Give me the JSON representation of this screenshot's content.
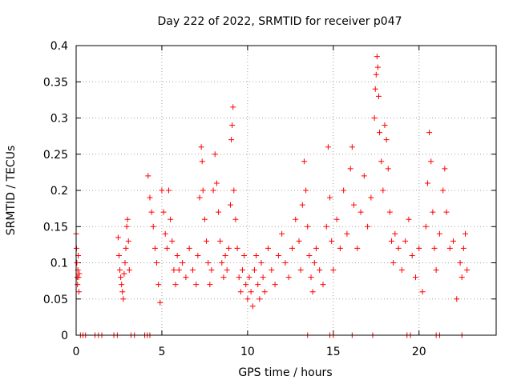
{
  "chart_data": {
    "type": "scatter",
    "title": "Day 222 of 2022, SRMTID for receiver p047",
    "xlabel": "GPS time / hours",
    "ylabel": "SRMTID / TECUs",
    "xlim": [
      0,
      24.5
    ],
    "ylim": [
      0,
      0.4
    ],
    "x_ticks": [
      0,
      5,
      10,
      15,
      20
    ],
    "x_tick_labels": [
      "0",
      "5",
      "10",
      "15",
      "20"
    ],
    "y_ticks": [
      0,
      0.05,
      0.1,
      0.15,
      0.2,
      0.25,
      0.3,
      0.35,
      0.4
    ],
    "y_tick_labels": [
      "0",
      "0.05",
      "0.1",
      "0.15",
      "0.2",
      "0.25",
      "0.3",
      "0.35",
      "0.4"
    ],
    "grid": true,
    "marker": "plus",
    "color": "#ff0000",
    "series": [
      {
        "name": "p047",
        "points": [
          [
            0.0,
            0.14
          ],
          [
            0.02,
            0.12
          ],
          [
            0.04,
            0.1
          ],
          [
            0.06,
            0.08
          ],
          [
            0.08,
            0.07
          ],
          [
            0.1,
            0.09
          ],
          [
            0.12,
            0.11
          ],
          [
            0.14,
            0.08
          ],
          [
            0.16,
            0.06
          ],
          [
            0.18,
            0.085
          ],
          [
            2.45,
            0.135
          ],
          [
            2.5,
            0.11
          ],
          [
            2.55,
            0.09
          ],
          [
            2.6,
            0.08
          ],
          [
            2.65,
            0.07
          ],
          [
            2.7,
            0.06
          ],
          [
            2.75,
            0.05
          ],
          [
            2.8,
            0.085
          ],
          [
            2.85,
            0.1
          ],
          [
            2.9,
            0.12
          ],
          [
            2.95,
            0.15
          ],
          [
            3.0,
            0.16
          ],
          [
            3.05,
            0.13
          ],
          [
            3.1,
            0.09
          ],
          [
            4.2,
            0.22
          ],
          [
            4.3,
            0.19
          ],
          [
            4.4,
            0.17
          ],
          [
            4.5,
            0.15
          ],
          [
            4.6,
            0.12
          ],
          [
            4.7,
            0.1
          ],
          [
            4.8,
            0.07
          ],
          [
            4.9,
            0.045
          ],
          [
            5.0,
            0.2
          ],
          [
            5.1,
            0.17
          ],
          [
            5.2,
            0.14
          ],
          [
            5.3,
            0.12
          ],
          [
            5.4,
            0.2
          ],
          [
            5.5,
            0.16
          ],
          [
            5.6,
            0.13
          ],
          [
            5.7,
            0.09
          ],
          [
            5.8,
            0.07
          ],
          [
            5.9,
            0.11
          ],
          [
            6.0,
            0.09
          ],
          [
            6.2,
            0.1
          ],
          [
            6.4,
            0.08
          ],
          [
            6.6,
            0.12
          ],
          [
            6.8,
            0.09
          ],
          [
            7.0,
            0.07
          ],
          [
            7.1,
            0.11
          ],
          [
            7.2,
            0.19
          ],
          [
            7.3,
            0.26
          ],
          [
            7.35,
            0.24
          ],
          [
            7.4,
            0.2
          ],
          [
            7.5,
            0.16
          ],
          [
            7.6,
            0.13
          ],
          [
            7.7,
            0.1
          ],
          [
            7.8,
            0.07
          ],
          [
            7.9,
            0.09
          ],
          [
            8.0,
            0.2
          ],
          [
            8.1,
            0.25
          ],
          [
            8.2,
            0.21
          ],
          [
            8.3,
            0.17
          ],
          [
            8.4,
            0.13
          ],
          [
            8.5,
            0.1
          ],
          [
            8.6,
            0.08
          ],
          [
            8.7,
            0.11
          ],
          [
            8.8,
            0.09
          ],
          [
            8.9,
            0.12
          ],
          [
            9.0,
            0.18
          ],
          [
            9.05,
            0.27
          ],
          [
            9.1,
            0.29
          ],
          [
            9.15,
            0.315
          ],
          [
            9.2,
            0.2
          ],
          [
            9.3,
            0.16
          ],
          [
            9.4,
            0.12
          ],
          [
            9.5,
            0.08
          ],
          [
            9.6,
            0.06
          ],
          [
            9.7,
            0.09
          ],
          [
            9.8,
            0.11
          ],
          [
            9.9,
            0.07
          ],
          [
            10.0,
            0.05
          ],
          [
            10.1,
            0.08
          ],
          [
            10.2,
            0.06
          ],
          [
            10.3,
            0.04
          ],
          [
            10.4,
            0.09
          ],
          [
            10.5,
            0.11
          ],
          [
            10.6,
            0.07
          ],
          [
            10.7,
            0.05
          ],
          [
            10.8,
            0.1
          ],
          [
            10.9,
            0.08
          ],
          [
            11.0,
            0.06
          ],
          [
            11.2,
            0.12
          ],
          [
            11.4,
            0.09
          ],
          [
            11.6,
            0.07
          ],
          [
            11.8,
            0.11
          ],
          [
            12.0,
            0.14
          ],
          [
            12.2,
            0.1
          ],
          [
            12.4,
            0.08
          ],
          [
            12.6,
            0.12
          ],
          [
            12.8,
            0.16
          ],
          [
            13.0,
            0.13
          ],
          [
            13.1,
            0.09
          ],
          [
            13.2,
            0.18
          ],
          [
            13.3,
            0.24
          ],
          [
            13.4,
            0.2
          ],
          [
            13.5,
            0.15
          ],
          [
            13.6,
            0.11
          ],
          [
            13.7,
            0.08
          ],
          [
            13.8,
            0.06
          ],
          [
            13.9,
            0.1
          ],
          [
            14.0,
            0.12
          ],
          [
            14.2,
            0.09
          ],
          [
            14.4,
            0.07
          ],
          [
            14.6,
            0.15
          ],
          [
            14.7,
            0.26
          ],
          [
            14.8,
            0.19
          ],
          [
            14.9,
            0.13
          ],
          [
            15.0,
            0.09
          ],
          [
            15.2,
            0.16
          ],
          [
            15.4,
            0.12
          ],
          [
            15.6,
            0.2
          ],
          [
            15.8,
            0.14
          ],
          [
            16.0,
            0.23
          ],
          [
            16.1,
            0.26
          ],
          [
            16.2,
            0.18
          ],
          [
            16.4,
            0.12
          ],
          [
            16.6,
            0.17
          ],
          [
            16.8,
            0.22
          ],
          [
            17.0,
            0.15
          ],
          [
            17.2,
            0.19
          ],
          [
            17.4,
            0.3
          ],
          [
            17.45,
            0.34
          ],
          [
            17.5,
            0.36
          ],
          [
            17.55,
            0.385
          ],
          [
            17.6,
            0.37
          ],
          [
            17.65,
            0.33
          ],
          [
            17.7,
            0.28
          ],
          [
            17.8,
            0.24
          ],
          [
            17.9,
            0.2
          ],
          [
            18.0,
            0.29
          ],
          [
            18.1,
            0.27
          ],
          [
            18.2,
            0.23
          ],
          [
            18.3,
            0.17
          ],
          [
            18.4,
            0.13
          ],
          [
            18.5,
            0.1
          ],
          [
            18.6,
            0.14
          ],
          [
            18.8,
            0.12
          ],
          [
            19.0,
            0.09
          ],
          [
            19.2,
            0.13
          ],
          [
            19.4,
            0.16
          ],
          [
            19.6,
            0.11
          ],
          [
            19.8,
            0.08
          ],
          [
            20.0,
            0.12
          ],
          [
            20.2,
            0.06
          ],
          [
            20.4,
            0.15
          ],
          [
            20.5,
            0.21
          ],
          [
            20.6,
            0.28
          ],
          [
            20.7,
            0.24
          ],
          [
            20.8,
            0.17
          ],
          [
            20.9,
            0.12
          ],
          [
            21.0,
            0.09
          ],
          [
            21.2,
            0.14
          ],
          [
            21.4,
            0.2
          ],
          [
            21.5,
            0.23
          ],
          [
            21.6,
            0.17
          ],
          [
            21.8,
            0.12
          ],
          [
            22.0,
            0.13
          ],
          [
            22.2,
            0.05
          ],
          [
            22.4,
            0.1
          ],
          [
            22.5,
            0.08
          ],
          [
            22.6,
            0.12
          ],
          [
            22.7,
            0.14
          ],
          [
            22.8,
            0.09
          ]
        ],
        "zero_points_x": [
          0.25,
          0.4,
          0.55,
          1.1,
          1.3,
          1.5,
          2.2,
          2.4,
          3.2,
          3.4,
          4.0,
          4.15,
          4.3,
          13.5,
          14.8,
          15.0,
          16.1,
          17.3,
          19.3,
          19.5,
          21.0,
          21.2,
          22.5
        ]
      }
    ]
  }
}
